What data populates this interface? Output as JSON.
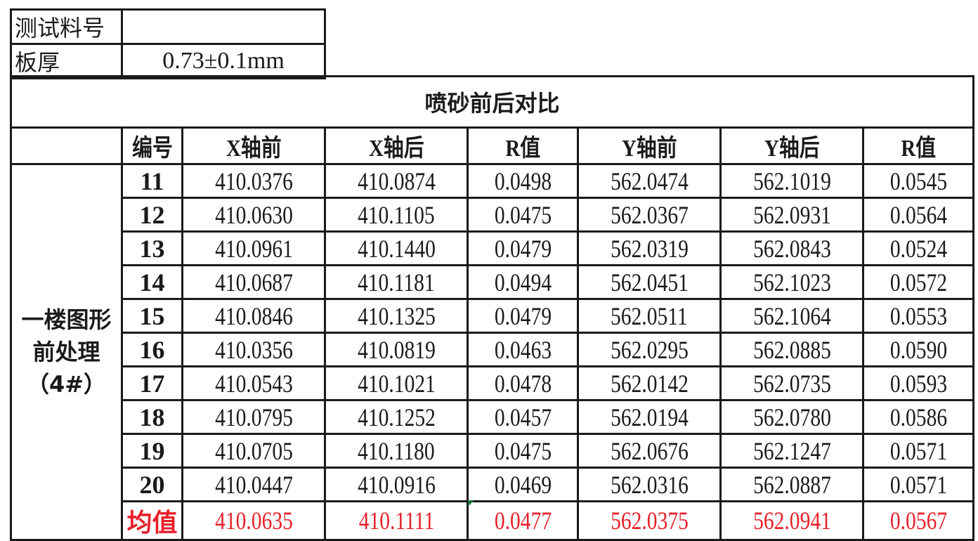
{
  "info": {
    "material_label": "测试料号",
    "material_value": "",
    "thickness_label": "板厚",
    "thickness_value": "0.73±0.1mm"
  },
  "table": {
    "title": "喷砂前后对比",
    "headers": [
      "",
      "编号",
      "X轴前",
      "X轴后",
      "R值",
      "Y轴前",
      "Y轴后",
      "R值"
    ],
    "group_label": "一楼图形前处理（4#）",
    "rows": [
      [
        "11",
        "410.0376",
        "410.0874",
        "0.0498",
        "562.0474",
        "562.1019",
        "0.0545"
      ],
      [
        "12",
        "410.0630",
        "410.1105",
        "0.0475",
        "562.0367",
        "562.0931",
        "0.0564"
      ],
      [
        "13",
        "410.0961",
        "410.1440",
        "0.0479",
        "562.0319",
        "562.0843",
        "0.0524"
      ],
      [
        "14",
        "410.0687",
        "410.1181",
        "0.0494",
        "562.0451",
        "562.1023",
        "0.0572"
      ],
      [
        "15",
        "410.0846",
        "410.1325",
        "0.0479",
        "562.0511",
        "562.1064",
        "0.0553"
      ],
      [
        "16",
        "410.0356",
        "410.0819",
        "0.0463",
        "562.0295",
        "562.0885",
        "0.0590"
      ],
      [
        "17",
        "410.0543",
        "410.1021",
        "0.0478",
        "562.0142",
        "562.0735",
        "0.0593"
      ],
      [
        "18",
        "410.0795",
        "410.1252",
        "0.0457",
        "562.0194",
        "562.0780",
        "0.0586"
      ],
      [
        "19",
        "410.0705",
        "410.1180",
        "0.0475",
        "562.0676",
        "562.1247",
        "0.0571"
      ],
      [
        "20",
        "410.0447",
        "410.0916",
        "0.0469",
        "562.0316",
        "562.0887",
        "0.0571"
      ]
    ],
    "average": [
      "均值",
      "410.0635",
      "410.1111",
      "0.0477",
      "562.0375",
      "562.0941",
      "0.0567"
    ]
  },
  "colors": {
    "average_text": "#e8202a",
    "cell_marker": "#1e7a3c"
  }
}
